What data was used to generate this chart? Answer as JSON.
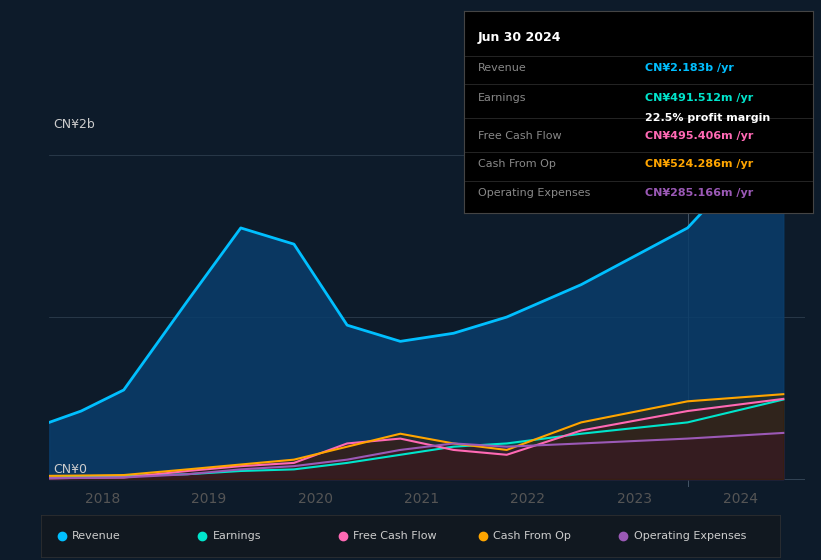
{
  "background_color": "#0d1b2a",
  "plot_bg_color": "#0d1b2a",
  "ylabel_top": "CN¥2b",
  "ylabel_bottom": "CN¥0",
  "x_labels": [
    "2018",
    "2019",
    "2020",
    "2021",
    "2022",
    "2023",
    "2024"
  ],
  "colors": {
    "revenue": "#00bfff",
    "earnings": "#00e5cc",
    "free_cash_flow": "#ff69b4",
    "cash_from_op": "#ffa500",
    "operating_expenses": "#9b59b6"
  },
  "info_box": {
    "date": "Jun 30 2024",
    "revenue_label": "Revenue",
    "revenue_value": "CN¥2.183b",
    "revenue_color": "#00bfff",
    "earnings_label": "Earnings",
    "earnings_value": "CN¥491.512m",
    "earnings_color": "#00e5cc",
    "margin_text": "22.5% profit margin",
    "fcf_label": "Free Cash Flow",
    "fcf_value": "CN¥495.406m",
    "fcf_color": "#ff69b4",
    "cashop_label": "Cash From Op",
    "cashop_value": "CN¥524.286m",
    "cashop_color": "#ffa500",
    "opex_label": "Operating Expenses",
    "opex_value": "CN¥285.166m",
    "opex_color": "#9b59b6"
  },
  "revenue": [
    0.35,
    0.42,
    0.55,
    1.1,
    1.55,
    1.45,
    0.95,
    0.85,
    0.9,
    1.0,
    1.2,
    1.55,
    2.183
  ],
  "earnings": [
    0.01,
    0.015,
    0.02,
    0.03,
    0.05,
    0.06,
    0.1,
    0.15,
    0.2,
    0.22,
    0.28,
    0.35,
    0.491
  ],
  "free_cash_flow": [
    0.005,
    0.008,
    0.01,
    0.05,
    0.08,
    0.1,
    0.22,
    0.25,
    0.18,
    0.15,
    0.3,
    0.42,
    0.495
  ],
  "cash_from_op": [
    0.02,
    0.022,
    0.025,
    0.06,
    0.09,
    0.12,
    0.2,
    0.28,
    0.22,
    0.18,
    0.35,
    0.48,
    0.524
  ],
  "operating_expenses": [
    0.005,
    0.007,
    0.01,
    0.03,
    0.06,
    0.08,
    0.12,
    0.18,
    0.22,
    0.2,
    0.22,
    0.25,
    0.285
  ],
  "x_num": [
    2017.5,
    2017.8,
    2018.2,
    2018.8,
    2019.3,
    2019.8,
    2020.3,
    2020.8,
    2021.3,
    2021.8,
    2022.5,
    2023.5,
    2024.4
  ]
}
